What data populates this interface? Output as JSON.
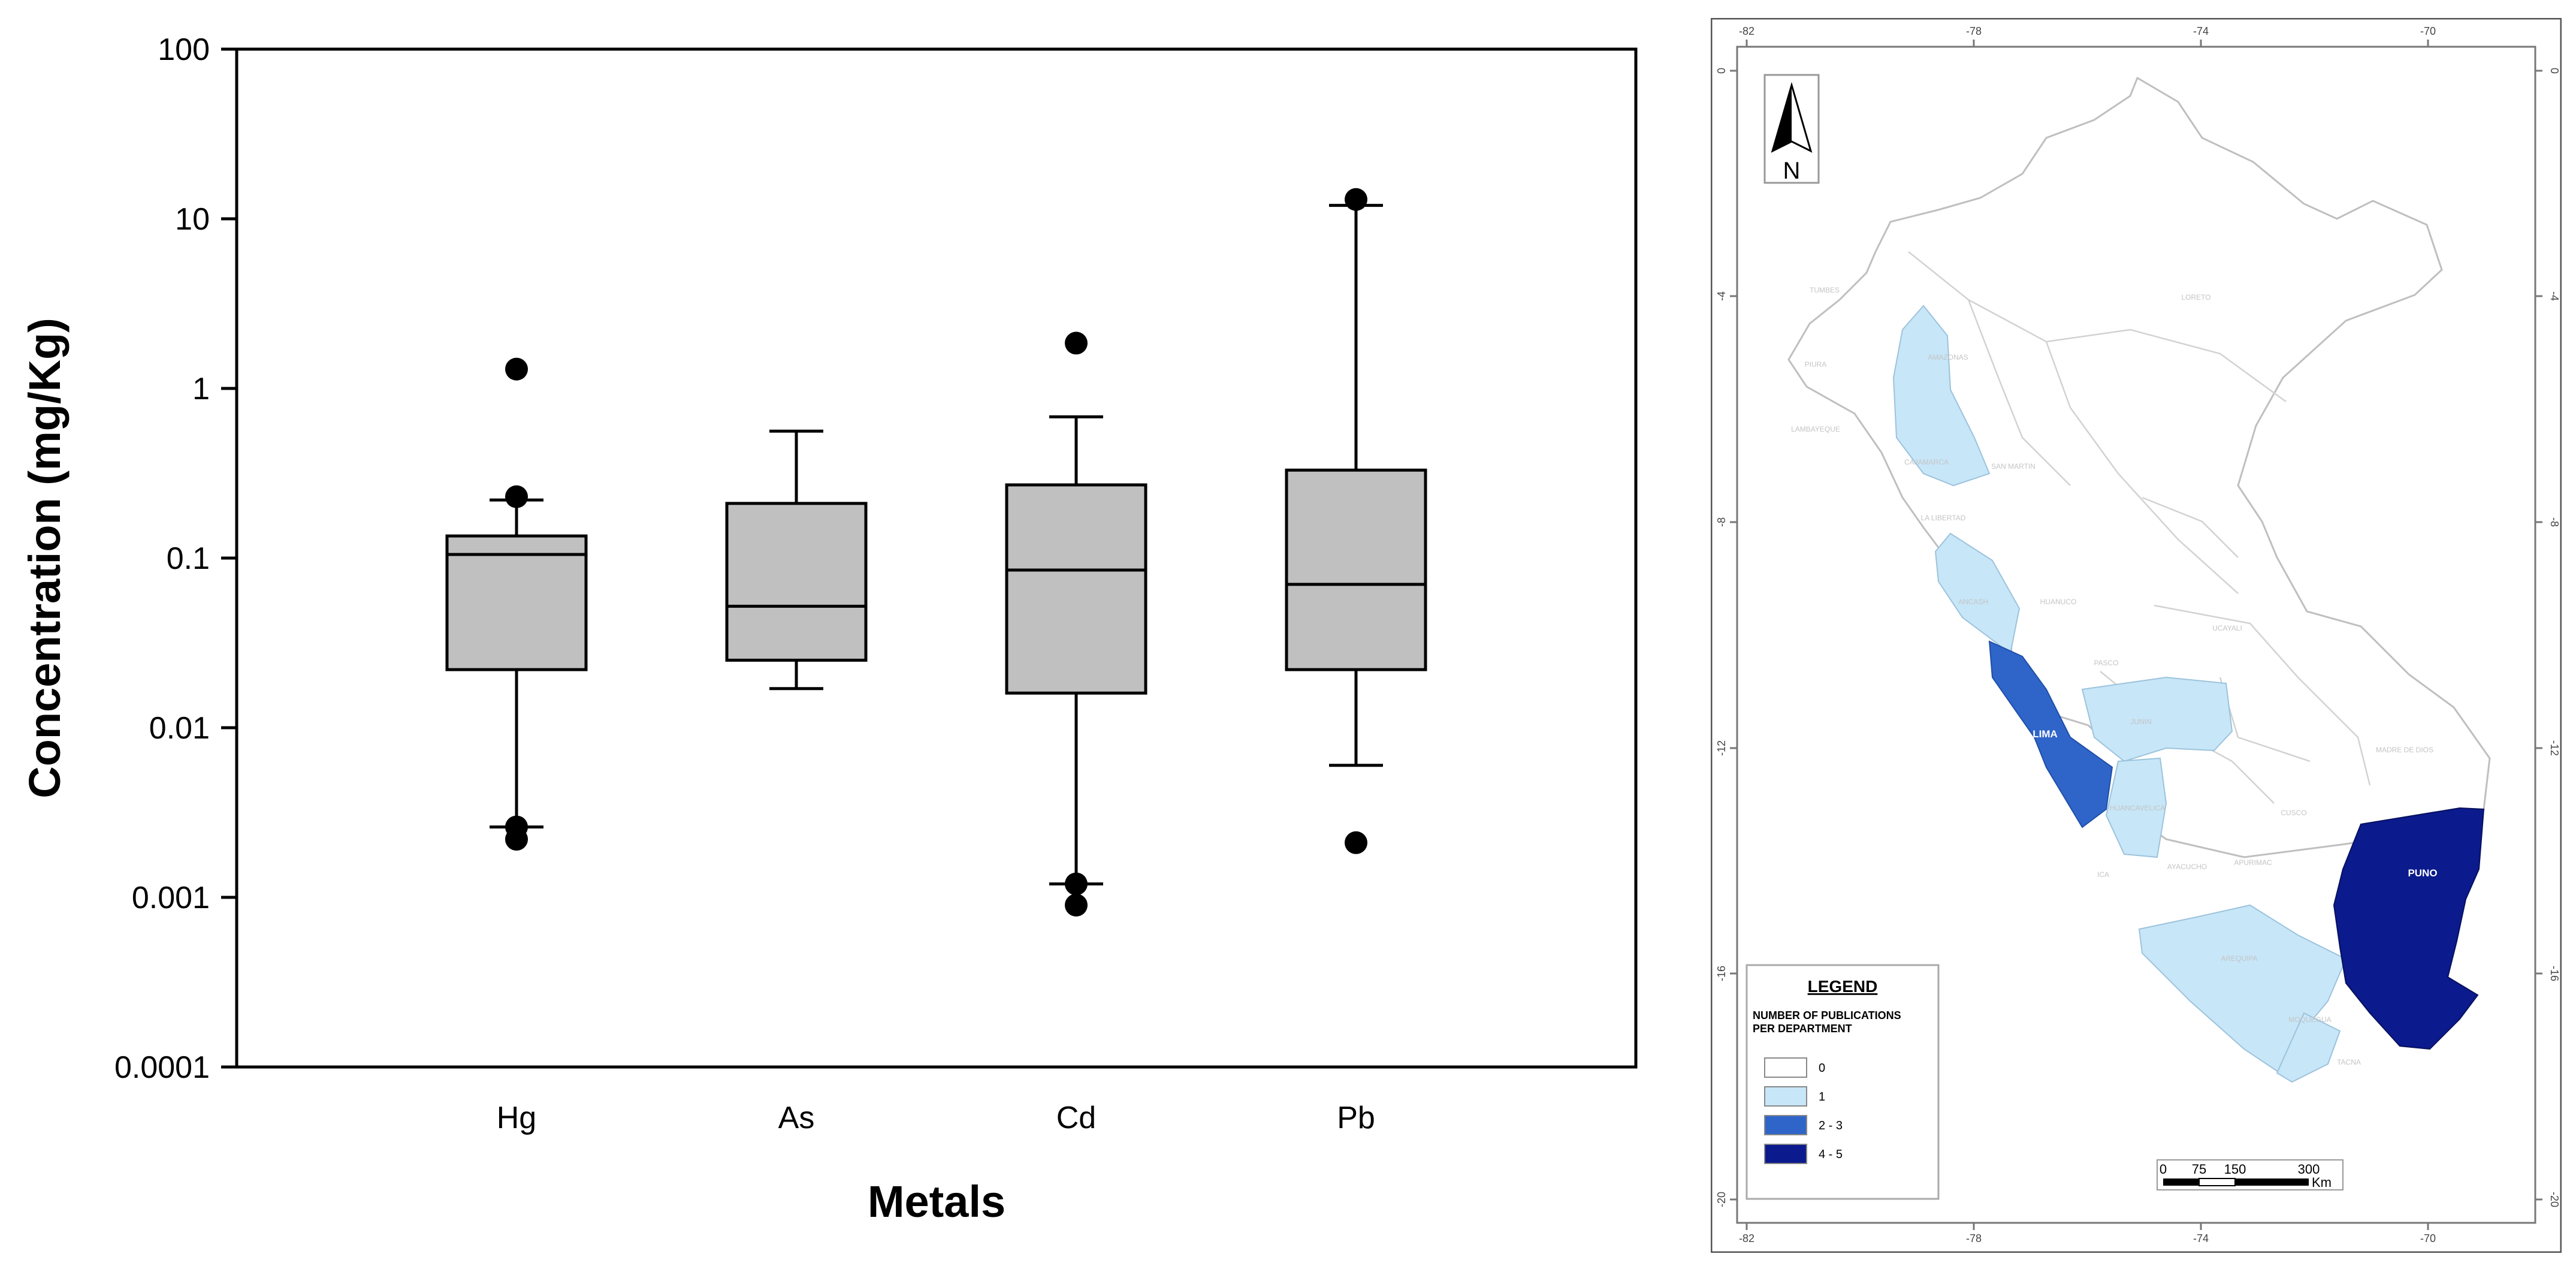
{
  "chart_data": {
    "type": "box",
    "ylabel": "Concentration (mg/Kg)",
    "xlabel": "Metals",
    "yscale": "log",
    "ylim": [
      0.0001,
      100
    ],
    "ytick_values": [
      0.0001,
      0.001,
      0.01,
      0.1,
      1,
      10,
      100
    ],
    "ytick_labels": [
      "0.0001",
      "0.001",
      "0.01",
      "0.1",
      "1",
      "10",
      "100"
    ],
    "categories": [
      "Hg",
      "As",
      "Cd",
      "Pb"
    ],
    "box_fill": "#c0c0c0",
    "boxes": [
      {
        "name": "Hg",
        "whisker_low": 0.0026,
        "q1": 0.022,
        "median": 0.105,
        "q3": 0.135,
        "whisker_high": 0.22,
        "outliers": [
          1.3,
          0.23,
          0.0026,
          0.0022
        ]
      },
      {
        "name": "As",
        "whisker_low": 0.017,
        "q1": 0.025,
        "median": 0.052,
        "q3": 0.21,
        "whisker_high": 0.56,
        "outliers": []
      },
      {
        "name": "Cd",
        "whisker_low": 0.0012,
        "q1": 0.016,
        "median": 0.085,
        "q3": 0.27,
        "whisker_high": 0.68,
        "outliers": [
          1.85,
          0.0012,
          0.0009
        ]
      },
      {
        "name": "Pb",
        "whisker_low": 0.006,
        "q1": 0.022,
        "median": 0.07,
        "q3": 0.33,
        "whisker_high": 12,
        "outliers": [
          13,
          0.0021
        ]
      }
    ]
  },
  "map": {
    "top_lon_labels": [
      "-82",
      "-78",
      "-74",
      "-70"
    ],
    "bottom_lon_labels": [
      "-82",
      "-78",
      "-74",
      "-70"
    ],
    "lat_labels": [
      "0",
      "-4",
      "-8",
      "-12",
      "-16",
      "-20"
    ],
    "north_label": "N",
    "legend": {
      "title": "LEGEND",
      "subtitle_line1": "NUMBER OF PUBLICATIONS",
      "subtitle_line2": "PER DEPARTMENT",
      "items": [
        {
          "label": "0",
          "color": "#ffffff"
        },
        {
          "label": "1",
          "color": "#c7e6f8"
        },
        {
          "label": "2 - 3",
          "color": "#2f65c9"
        },
        {
          "label": "4 - 5",
          "color": "#0b1a8c"
        }
      ]
    },
    "scale_bar": {
      "ticks": [
        "0",
        "75",
        "150",
        "300"
      ],
      "unit": "Km"
    },
    "highlighted_labels": [
      {
        "name": "LIMA",
        "color": "#2f65c9"
      },
      {
        "name": "PUNO",
        "color": "#0b1a8c"
      }
    ],
    "faint_labels": [
      "TUMBES",
      "PIURA",
      "LAMBAYEQUE",
      "AMAZONAS",
      "CAJAMARCA",
      "LA LIBERTAD",
      "SAN MARTIN",
      "LORETO",
      "ANCASH",
      "HUANUCO",
      "PASCO",
      "UCAYALI",
      "JUNIN",
      "HUANCAVELICA",
      "AYACUCHO",
      "APURIMAC",
      "CUSCO",
      "MADRE DE DIOS",
      "ICA",
      "AREQUIPA",
      "MOQUEGUA",
      "TACNA"
    ]
  }
}
